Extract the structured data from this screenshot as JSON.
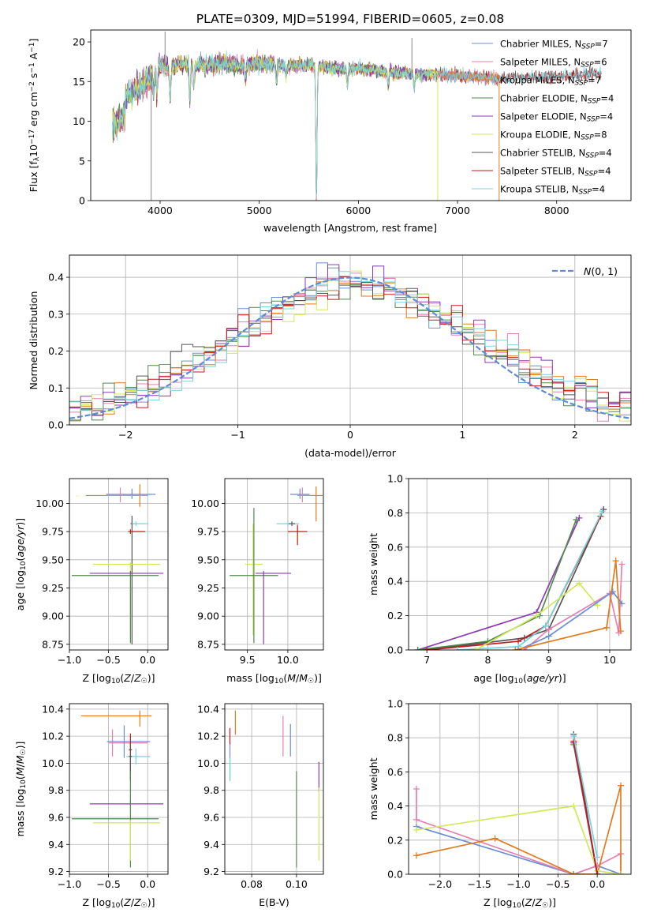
{
  "figure_title": "PLATE=0309, MJD=51994, FIBERID=0605, z=0.08",
  "colors": {
    "Chabrier MILES": "#6a8fd8",
    "Salpeter MILES": "#e57fb0",
    "Kroupa MILES": "#e07a1f",
    "Chabrier ELODIE": "#4f8a4f",
    "Salpeter ELODIE": "#8e3bb2",
    "Kroupa ELODIE": "#d2e85a",
    "Chabrier STELIB": "#555555",
    "Salpeter STELIB": "#c81a1a",
    "Kroupa STELIB": "#78d2dc",
    "normal": "#5f8ad6",
    "grid": "#b0b0b0"
  },
  "chart_data": [
    {
      "id": "spectrum",
      "type": "line",
      "title": "PLATE=0309, MJD=51994, FIBERID=0605, z=0.08",
      "xlabel": "wavelength [Angstrom, rest frame]",
      "ylabel": "Flux [f_λ 10^-17 erg cm^-2 s^-1 A^-1]",
      "xlim": [
        3300,
        8750
      ],
      "ylim": [
        0,
        21.5
      ],
      "xticks": [
        4000,
        5000,
        6000,
        7000,
        8000
      ],
      "yticks": [
        0,
        5,
        10,
        15,
        20
      ],
      "grid": false,
      "legend_position": "top-right",
      "series": [
        {
          "name": "Chabrier MILES",
          "nssp": 7,
          "x": [
            3520,
            7400
          ]
        },
        {
          "name": "Salpeter MILES",
          "nssp": 6,
          "x": [
            3520,
            7400
          ]
        },
        {
          "name": "Kroupa MILES",
          "nssp": 7,
          "x": [
            3520,
            7420
          ]
        },
        {
          "name": "Chabrier ELODIE",
          "nssp": 4,
          "x": [
            3520,
            6800
          ]
        },
        {
          "name": "Salpeter ELODIE",
          "nssp": 4,
          "x": [
            3520,
            6800
          ]
        },
        {
          "name": "Kroupa ELODIE",
          "nssp": 8,
          "x": [
            3520,
            6800
          ]
        },
        {
          "name": "Chabrier STELIB",
          "nssp": 4,
          "x": [
            3520,
            8450
          ]
        },
        {
          "name": "Salpeter STELIB",
          "nssp": 4,
          "x": [
            3520,
            8450
          ]
        },
        {
          "name": "Kroupa STELIB",
          "nssp": 4,
          "x": [
            3520,
            8450
          ]
        }
      ],
      "continuum": {
        "x": [
          3520,
          3600,
          3700,
          3800,
          3900,
          4000,
          4100,
          4200,
          4400,
          4600,
          4800,
          5000,
          5200,
          5500,
          5800,
          6000,
          6300,
          6600,
          7000,
          7400,
          7800,
          8100,
          8450
        ],
        "y": [
          11.5,
          12.5,
          13.5,
          14.5,
          15.5,
          17.2,
          16.8,
          17.3,
          17.0,
          17.3,
          17.0,
          17.4,
          17.0,
          17.1,
          16.6,
          16.7,
          16.2,
          16.0,
          15.8,
          15.4,
          15.6,
          15.8,
          16.0
        ]
      },
      "features": [
        {
          "x": 3934,
          "depth": 3.0
        },
        {
          "x": 3969,
          "depth": 3.5
        },
        {
          "x": 4102,
          "depth": 5.0
        },
        {
          "x": 4300,
          "depth": 5.5
        },
        {
          "x": 4340,
          "depth": 3.0
        },
        {
          "x": 4861,
          "depth": 2.0
        },
        {
          "x": 5175,
          "depth": 2.0
        },
        {
          "x": 5270,
          "depth": 1.5
        },
        {
          "x": 5577,
          "depth": 17.0
        },
        {
          "x": 5890,
          "depth": 2.5
        },
        {
          "x": 6300,
          "depth": 2.0
        },
        {
          "x": 6563,
          "depth": 2.0
        }
      ],
      "spikes": [
        {
          "x": 3910,
          "y": 0
        },
        {
          "x": 6800,
          "y": 0
        },
        {
          "x": 7420,
          "y": 0
        },
        {
          "x": 6540,
          "y": 20.5
        },
        {
          "x": 4050,
          "y": 21.3
        }
      ]
    },
    {
      "id": "residuals",
      "type": "histogram",
      "xlabel": "(data-model)/error",
      "ylabel": "Normed distribution",
      "xlim": [
        -2.5,
        2.5
      ],
      "ylim": [
        0,
        0.46
      ],
      "xticks": [
        -2,
        -1,
        0,
        1,
        2
      ],
      "yticks": [
        0.0,
        0.1,
        0.2,
        0.3,
        0.4
      ],
      "grid": true,
      "legend_position": "top-right",
      "normal_label": "N(0, 1)",
      "normal_mean": 0,
      "normal_sigma": 1,
      "bin_width": 0.1
    },
    {
      "id": "age_vs_Z",
      "type": "scatter",
      "xlabel": "Z [log10(Z/Z☉)]",
      "ylabel": "age [log10(age/yr)]",
      "xlim": [
        -1.0,
        0.26
      ],
      "ylim": [
        8.7,
        10.22
      ],
      "xticks": [
        -1.0,
        -0.5,
        0.0
      ],
      "yticks": [
        8.75,
        9.0,
        9.25,
        9.5,
        9.75,
        10.0
      ],
      "grid": true,
      "points": [
        {
          "s": "Kroupa MILES",
          "x": -0.1,
          "y": 10.07,
          "xerr": [
            0.69,
            0.1
          ],
          "yerr": [
            0.1,
            0.1
          ]
        },
        {
          "s": "Chabrier MILES",
          "x": -0.2,
          "y": 10.08,
          "xerr": [
            0.33,
            0.3
          ],
          "yerr": [
            0.04,
            0.05
          ]
        },
        {
          "s": "Salpeter MILES",
          "x": -0.35,
          "y": 10.07,
          "xerr": [
            0.18,
            0.35
          ],
          "yerr": [
            0.06,
            0.07
          ]
        },
        {
          "s": "Chabrier STELIB",
          "x": -0.2,
          "y": 9.82,
          "xerr": [
            0.02,
            0.02
          ],
          "yerr": [
            1.07,
            0.07
          ]
        },
        {
          "s": "Kroupa STELIB",
          "x": -0.15,
          "y": 9.82,
          "xerr": [
            0.05,
            0.16
          ],
          "yerr": [
            0.02,
            0.02
          ]
        },
        {
          "s": "Salpeter STELIB",
          "x": -0.22,
          "y": 9.75,
          "xerr": [
            0.03,
            0.19
          ],
          "yerr": [
            0.02,
            0.02
          ]
        },
        {
          "s": "Kroupa ELODIE",
          "x": -0.22,
          "y": 9.46,
          "xerr": [
            0.48,
            0.38
          ],
          "yerr": [
            0.63,
            0.02
          ]
        },
        {
          "s": "Salpeter ELODIE",
          "x": -0.22,
          "y": 9.38,
          "xerr": [
            0.52,
            0.42
          ],
          "yerr": [
            0.02,
            0.02
          ]
        },
        {
          "s": "Chabrier ELODIE",
          "x": -0.22,
          "y": 9.36,
          "xerr": [
            0.75,
            0.36
          ],
          "yerr": [
            0.6,
            0.02
          ]
        }
      ]
    },
    {
      "id": "age_vs_mass",
      "type": "scatter",
      "xlabel": "mass [log10(M/M☉)]",
      "ylabel": "",
      "xlim": [
        9.22,
        10.44
      ],
      "ylim": [
        8.7,
        10.22
      ],
      "xticks": [
        9.5,
        10.0
      ],
      "yticks": [
        8.75,
        9.0,
        9.25,
        9.5,
        9.75,
        10.0
      ],
      "grid": true,
      "points": [
        {
          "s": "Kroupa MILES",
          "x": 10.35,
          "y": 10.07,
          "xerr": [
            0.18,
            0.08
          ],
          "yerr": [
            0.23,
            0.08
          ]
        },
        {
          "s": "Chabrier MILES",
          "x": 10.15,
          "y": 10.08,
          "xerr": [
            0.12,
            0.12
          ],
          "yerr": [
            0.04,
            0.05
          ]
        },
        {
          "s": "Salpeter MILES",
          "x": 10.18,
          "y": 10.07,
          "xerr": [
            0.06,
            0.1
          ],
          "yerr": [
            0.06,
            0.07
          ]
        },
        {
          "s": "Kroupa STELIB",
          "x": 10.0,
          "y": 9.82,
          "xerr": [
            0.14,
            0.14
          ],
          "yerr": [
            0.02,
            0.02
          ]
        },
        {
          "s": "Chabrier STELIB",
          "x": 10.05,
          "y": 9.82,
          "xerr": [
            0.04,
            0.04
          ],
          "yerr": [
            0.02,
            0.02
          ]
        },
        {
          "s": "Salpeter STELIB",
          "x": 10.12,
          "y": 9.75,
          "xerr": [
            0.12,
            0.12
          ],
          "yerr": [
            0.12,
            0.06
          ]
        },
        {
          "s": "Kroupa ELODIE",
          "x": 9.57,
          "y": 9.46,
          "xerr": [
            0.1,
            0.12
          ],
          "yerr": [
            0.63,
            0.36
          ]
        },
        {
          "s": "Chabrier ELODIE",
          "x": 9.58,
          "y": 9.36,
          "xerr": [
            0.3,
            0.3
          ],
          "yerr": [
            0.6,
            0.6
          ]
        },
        {
          "s": "Salpeter ELODIE",
          "x": 9.7,
          "y": 9.38,
          "xerr": [
            0.1,
            0.34
          ],
          "yerr": [
            0.63,
            0.02
          ]
        }
      ]
    },
    {
      "id": "weight_vs_age",
      "type": "line",
      "xlabel": "age [log10(age/yr)]",
      "ylabel": "mass weight",
      "xlim": [
        6.7,
        10.35
      ],
      "ylim": [
        0,
        1.0
      ],
      "xticks": [
        7,
        8,
        9,
        10
      ],
      "yticks": [
        0.0,
        0.2,
        0.4,
        0.6,
        0.8,
        1.0
      ],
      "grid": true,
      "series": [
        {
          "s": "Salpeter ELODIE",
          "x": [
            6.85,
            8.8,
            9.5
          ],
          "y": [
            0.0,
            0.22,
            0.77
          ]
        },
        {
          "s": "Chabrier ELODIE",
          "x": [
            6.85,
            8.0,
            8.85,
            9.45
          ],
          "y": [
            0.0,
            0.05,
            0.2,
            0.76
          ]
        },
        {
          "s": "Chabrier STELIB",
          "x": [
            7.0,
            8.6,
            9.0,
            9.9
          ],
          "y": [
            0.0,
            0.07,
            0.12,
            0.82
          ]
        },
        {
          "s": "Salpeter STELIB",
          "x": [
            7.0,
            8.5,
            8.95,
            9.85
          ],
          "y": [
            0.0,
            0.05,
            0.14,
            0.78
          ]
        },
        {
          "s": "Kroupa STELIB",
          "x": [
            7.5,
            8.5,
            8.95,
            9.88
          ],
          "y": [
            0.0,
            0.02,
            0.14,
            0.81
          ]
        },
        {
          "s": "Kroupa ELODIE",
          "x": [
            7.8,
            8.8,
            9.5,
            9.8
          ],
          "y": [
            0.0,
            0.2,
            0.39,
            0.26
          ]
        },
        {
          "s": "Salpeter MILES",
          "x": [
            8.6,
            9.0,
            10.0,
            10.15,
            10.2
          ],
          "y": [
            0.0,
            0.12,
            0.33,
            0.1,
            0.5
          ]
        },
        {
          "s": "Chabrier MILES",
          "x": [
            8.5,
            9.0,
            10.05,
            10.2
          ],
          "y": [
            0.0,
            0.08,
            0.34,
            0.27
          ]
        },
        {
          "s": "Kroupa MILES",
          "x": [
            8.45,
            9.95,
            10.1,
            10.18
          ],
          "y": [
            0.0,
            0.13,
            0.52,
            0.11
          ]
        }
      ]
    },
    {
      "id": "mass_vs_Z",
      "type": "scatter",
      "xlabel": "Z [log10(Z/Z☉)]",
      "ylabel": "mass [log10(M/M☉)]",
      "xlim": [
        -1.0,
        0.26
      ],
      "ylim": [
        9.18,
        10.44
      ],
      "xticks": [
        -1.0,
        -0.5,
        0.0
      ],
      "yticks": [
        9.2,
        9.4,
        9.6,
        9.8,
        10.0,
        10.2,
        10.4
      ],
      "grid": true,
      "points": [
        {
          "s": "Kroupa MILES",
          "x": -0.1,
          "y": 10.35,
          "xerr": [
            0.75,
            0.15
          ],
          "yerr": [
            0.08,
            0.04
          ]
        },
        {
          "s": "Salpeter MILES",
          "x": -0.45,
          "y": 10.15,
          "xerr": [
            0.05,
            0.45
          ],
          "yerr": [
            0.1,
            0.1
          ]
        },
        {
          "s": "Chabrier MILES",
          "x": -0.3,
          "y": 10.16,
          "xerr": [
            0.22,
            0.33
          ],
          "yerr": [
            0.12,
            0.12
          ]
        },
        {
          "s": "Salpeter STELIB",
          "x": -0.22,
          "y": 10.1,
          "xerr": [
            0.02,
            0.02
          ],
          "yerr": [
            0.22,
            0.12
          ]
        },
        {
          "s": "Kroupa STELIB",
          "x": -0.15,
          "y": 10.05,
          "xerr": [
            0.12,
            0.18
          ],
          "yerr": [
            0.06,
            0.06
          ]
        },
        {
          "s": "Chabrier STELIB",
          "x": -0.22,
          "y": 10.05,
          "xerr": [
            0.02,
            0.02
          ],
          "yerr": [
            0.18,
            0.1
          ]
        },
        {
          "s": "Salpeter ELODIE",
          "x": -0.22,
          "y": 9.7,
          "xerr": [
            0.52,
            0.42
          ],
          "yerr": [
            0.02,
            0.02
          ]
        },
        {
          "s": "Chabrier ELODIE",
          "x": -0.22,
          "y": 9.59,
          "xerr": [
            0.75,
            0.36
          ],
          "yerr": [
            0.36,
            0.35
          ]
        },
        {
          "s": "Kroupa ELODIE",
          "x": -0.22,
          "y": 9.56,
          "xerr": [
            0.48,
            0.38
          ],
          "yerr": [
            0.28,
            0.02
          ]
        }
      ]
    },
    {
      "id": "mass_vs_ebv",
      "type": "scatter",
      "xlabel": "E(B-V)",
      "ylabel": "",
      "xlim": [
        0.068,
        0.112
      ],
      "ylim": [
        9.18,
        10.44
      ],
      "xticks": [
        0.08,
        0.1
      ],
      "yticks": [
        9.2,
        9.4,
        9.6,
        9.8,
        10.0,
        10.2,
        10.4
      ],
      "grid": true,
      "points": [
        {
          "s": "Chabrier MILES",
          "x": 0.0703,
          "y": 10.05,
          "yerr": [
            0.18,
            0.1
          ]
        },
        {
          "s": "Kroupa STELIB",
          "x": 0.0703,
          "y": 9.97,
          "yerr": [
            0.1,
            0.07
          ]
        },
        {
          "s": "Salpeter STELIB",
          "x": 0.0703,
          "y": 10.2,
          "yerr": [
            0.06,
            0.06
          ]
        },
        {
          "s": "Kroupa MILES",
          "x": 0.0727,
          "y": 10.3,
          "yerr": [
            0.09,
            0.09
          ]
        },
        {
          "s": "Salpeter MILES",
          "x": 0.094,
          "y": 10.2,
          "yerr": [
            0.15,
            0.15
          ]
        },
        {
          "s": "Chabrier MILES",
          "x": 0.0973,
          "y": 10.17,
          "yerr": [
            0.12,
            0.12
          ]
        },
        {
          "s": "Chabrier ELODIE",
          "x": 0.1,
          "y": 9.59,
          "yerr": [
            0.36,
            0.35
          ]
        },
        {
          "s": "Salpeter ELODIE",
          "x": 0.11,
          "y": 9.9,
          "yerr": [
            0.11,
            0.11
          ]
        },
        {
          "s": "Kroupa ELODIE",
          "x": 0.11,
          "y": 9.55,
          "yerr": [
            0.27,
            0.27
          ]
        }
      ]
    },
    {
      "id": "weight_vs_Z",
      "type": "line",
      "xlabel": "Z [log10(Z/Z☉)]",
      "ylabel": "mass weight",
      "xlim": [
        -2.4,
        0.43
      ],
      "ylim": [
        0,
        1.0
      ],
      "xticks": [
        -2.0,
        -1.5,
        -1.0,
        -0.5,
        0.0
      ],
      "yticks": [
        0.0,
        0.2,
        0.4,
        0.6,
        0.8,
        1.0
      ],
      "grid": true,
      "series": [
        {
          "s": "Chabrier MILES",
          "x": [
            -2.3,
            -0.3,
            0.0,
            0.3
          ],
          "y": [
            0.28,
            0.0,
            0.05,
            0.0
          ]
        },
        {
          "s": "Salpeter MILES",
          "x": [
            -2.3,
            -2.3,
            -0.3,
            0.0,
            0.3,
            0.3
          ],
          "y": [
            0.5,
            0.32,
            0.0,
            0.05,
            0.12,
            0.0
          ]
        },
        {
          "s": "Kroupa MILES",
          "x": [
            -2.3,
            -1.3,
            -0.3,
            0.0,
            0.3,
            0.3
          ],
          "y": [
            0.11,
            0.21,
            0.0,
            0.0,
            0.52,
            0.0
          ]
        },
        {
          "s": "Kroupa ELODIE",
          "x": [
            -2.3,
            -0.3,
            0.0,
            0.3
          ],
          "y": [
            0.26,
            0.4,
            0.02,
            0.0
          ]
        },
        {
          "s": "Chabrier ELODIE",
          "x": [
            -0.3,
            0.0
          ],
          "y": [
            0.76,
            0.0
          ]
        },
        {
          "s": "Salpeter ELODIE",
          "x": [
            -0.3,
            0.0
          ],
          "y": [
            0.77,
            0.0
          ]
        },
        {
          "s": "Chabrier STELIB",
          "x": [
            -0.3,
            0.0
          ],
          "y": [
            0.82,
            0.0
          ]
        },
        {
          "s": "Salpeter STELIB",
          "x": [
            -0.3,
            0.0
          ],
          "y": [
            0.78,
            0.0
          ]
        },
        {
          "s": "Kroupa STELIB",
          "x": [
            -0.3,
            0.0
          ],
          "y": [
            0.81,
            0.1
          ]
        }
      ]
    }
  ]
}
